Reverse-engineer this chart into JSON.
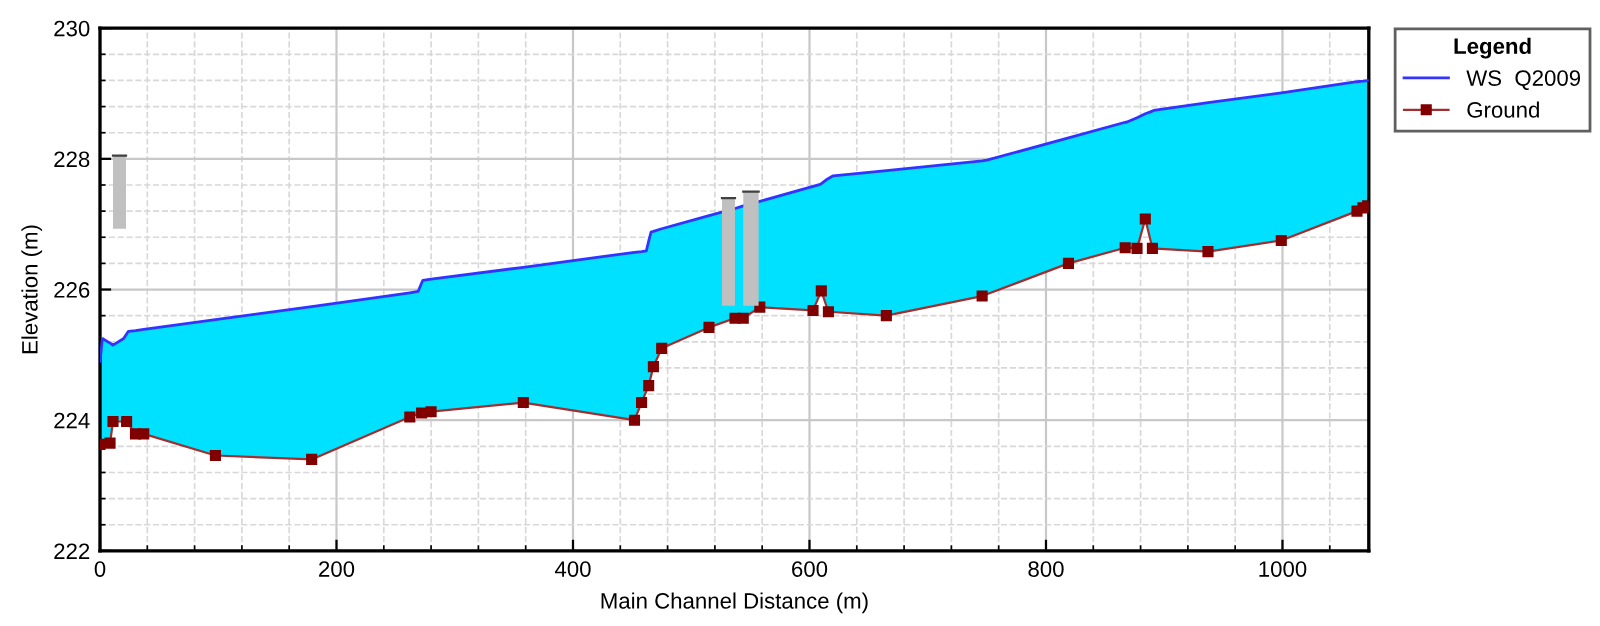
{
  "chart_data": {
    "type": "line",
    "xlabel": "Main Channel Distance (m)",
    "ylabel": "Elevation (m)",
    "legend_title": "Legend",
    "legend": "right",
    "grid": true,
    "xlim": [
      0,
      1073
    ],
    "xticks": [
      0,
      200,
      400,
      600,
      800,
      1000
    ],
    "ylim": [
      222,
      230
    ],
    "yticks": [
      222,
      224,
      226,
      228,
      230
    ],
    "series": [
      {
        "name": "WS  Q2009",
        "color": "#3333ff",
        "marker": "none",
        "upper": [
          224.9,
          225.25,
          225.18,
          225.15,
          225.25,
          225.32,
          225.36,
          225.37,
          225.39,
          225.54,
          225.74,
          225.95,
          225.97,
          226.1,
          226.14,
          226.16,
          226.34,
          226.57,
          226.58,
          226.59,
          226.74,
          226.88,
          226.89,
          226.93,
          227.13,
          227.24,
          227.28,
          227.35,
          227.58,
          227.61,
          227.62,
          227.69,
          227.7,
          227.74,
          227.82,
          227.97,
          227.98,
          228.32,
          228.56,
          228.56,
          228.63,
          228.69,
          228.73,
          228.74,
          228.86,
          229.01,
          229.18,
          229.19,
          229.2
        ],
        "x": [
          0,
          2,
          8.5,
          11,
          20,
          22.5,
          24,
          30,
          37,
          97.6,
          179,
          262,
          269,
          272,
          273,
          280,
          358,
          452,
          458,
          462,
          464,
          466,
          468,
          475,
          515,
          537,
          544,
          558,
          603,
          609,
          610,
          615,
          616,
          620,
          665,
          746,
          750,
          819,
          867,
          868,
          877,
          884,
          890,
          891,
          937,
          999,
          1063,
          1068,
          1072
        ],
        "values": [
          224.9,
          225.25,
          225.18,
          225.15,
          225.25,
          225.32,
          225.36,
          225.37,
          225.39,
          225.54,
          225.74,
          225.95,
          225.97,
          226.1,
          226.14,
          226.16,
          226.34,
          226.57,
          226.58,
          226.59,
          226.74,
          226.88,
          226.89,
          226.93,
          227.13,
          227.24,
          227.28,
          227.35,
          227.58,
          227.61,
          227.62,
          227.69,
          227.7,
          227.74,
          227.82,
          227.97,
          227.98,
          228.32,
          228.56,
          228.56,
          228.63,
          228.69,
          228.73,
          228.74,
          228.86,
          229.01,
          229.18,
          229.19,
          229.2
        ],
        "lower": [
          223.63,
          223.63,
          223.65,
          223.98,
          223.98,
          223.98,
          223.94,
          223.79,
          223.79,
          223.46,
          223.4,
          224.05,
          224.09,
          224.11,
          224.11,
          224.13,
          224.27,
          224.0,
          224.27,
          224.44,
          224.53,
          224.68,
          224.82,
          225.1,
          225.42,
          225.56,
          225.56,
          225.73,
          225.68,
          225.94,
          225.98,
          225.71,
          225.66,
          225.66,
          225.6,
          225.9,
          225.93,
          226.4,
          226.64,
          226.64,
          226.63,
          227.08,
          226.63,
          226.63,
          226.58,
          226.75,
          227.2,
          227.25,
          227.28
        ]
      },
      {
        "name": "Ground",
        "color": "#a03030",
        "marker": "square",
        "x": [
          0,
          8.5,
          11,
          22.5,
          30,
          37,
          97.6,
          179,
          262,
          272,
          280,
          358,
          452,
          458,
          464,
          468,
          475,
          515,
          537,
          544,
          558,
          603,
          610,
          616,
          665,
          746,
          819,
          867,
          877,
          884,
          890,
          937,
          999,
          1063,
          1068,
          1072
        ],
        "values": [
          223.63,
          223.65,
          223.98,
          223.98,
          223.79,
          223.79,
          223.46,
          223.4,
          224.05,
          224.11,
          224.13,
          224.27,
          224.0,
          224.27,
          224.53,
          224.82,
          225.1,
          225.42,
          225.56,
          225.56,
          225.73,
          225.68,
          225.98,
          225.66,
          225.6,
          225.9,
          226.4,
          226.64,
          226.63,
          227.08,
          226.63,
          226.58,
          226.75,
          227.2,
          227.25,
          227.28
        ]
      },
      {
        "color": "#404040",
        "marker": "none",
        "x": [
          11,
          22
        ],
        "lower": [
          226.93,
          226.93
        ],
        "upper": [
          228.05,
          228.05
        ],
        "values": [
          228.05,
          228.05
        ]
      },
      {
        "color": "#404040",
        "marker": "none",
        "x": [
          526,
          537
        ],
        "lower": [
          225.75,
          225.75
        ],
        "upper": [
          227.4,
          227.4
        ],
        "values": [
          227.4,
          227.4
        ]
      },
      {
        "color": "#404040",
        "marker": "none",
        "x": [
          544,
          557
        ],
        "lower": [
          225.75,
          225.75
        ],
        "upper": [
          227.5,
          227.5
        ],
        "values": [
          227.5,
          227.5
        ]
      }
    ]
  }
}
